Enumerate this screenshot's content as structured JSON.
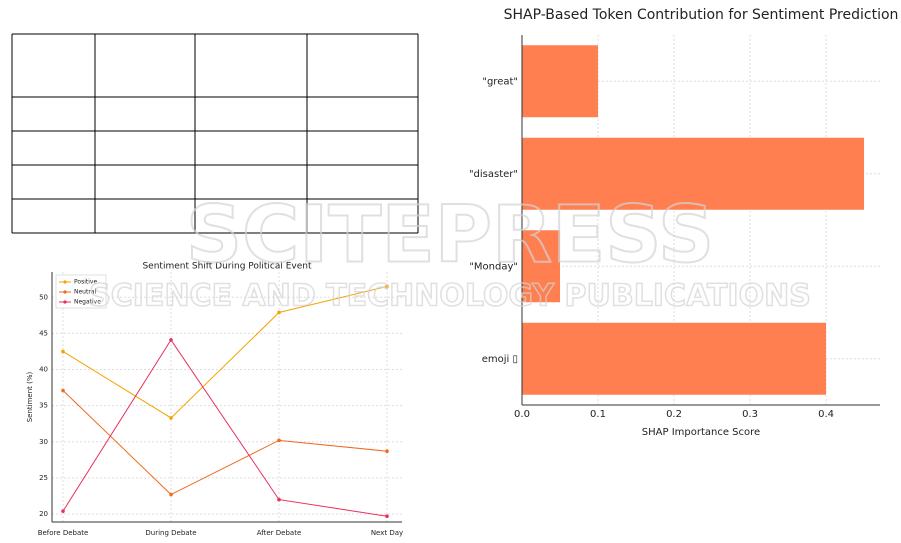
{
  "watermark": {
    "title": "SCITEPRESS",
    "subtitle": "SCIENCE AND TECHNOLOGY PUBLICATIONS"
  },
  "chart_data": [
    {
      "type": "line",
      "title": "Sentiment Shift During Political Event",
      "ylabel": "Sentiment (%)",
      "categories": [
        "Before Debate",
        "During Debate",
        "After Debate",
        "Next Day"
      ],
      "series": [
        {
          "name": "Positive",
          "color": "#f5a300",
          "values": [
            42.5,
            33.3,
            47.9,
            51.5
          ]
        },
        {
          "name": "Neutral",
          "color": "#f06a20",
          "values": [
            37.1,
            22.7,
            30.2,
            28.7
          ]
        },
        {
          "name": "Negative",
          "color": "#e8305a",
          "values": [
            20.4,
            44.1,
            22.0,
            19.7
          ]
        }
      ],
      "ylim": [
        18.9,
        53.5
      ],
      "yticks": [
        20,
        25,
        30,
        35,
        40,
        45,
        50
      ],
      "grid": true,
      "legend": "upper-left"
    },
    {
      "type": "barh",
      "title": "SHAP-Based Token Contribution for Sentiment Prediction",
      "xlabel": "SHAP Importance Score",
      "categories": [
        "\"great\"",
        "\"disaster\"",
        "\"Monday\"",
        "emoji ▯"
      ],
      "values": [
        0.1,
        0.45,
        0.05,
        0.4
      ],
      "color": "#ff7f50",
      "xlim": [
        0,
        0.471
      ],
      "xticks": [
        {
          "value": 0,
          "label": "0.0"
        },
        0.1,
        0.2,
        0.3,
        0.4
      ],
      "grid": true
    }
  ]
}
